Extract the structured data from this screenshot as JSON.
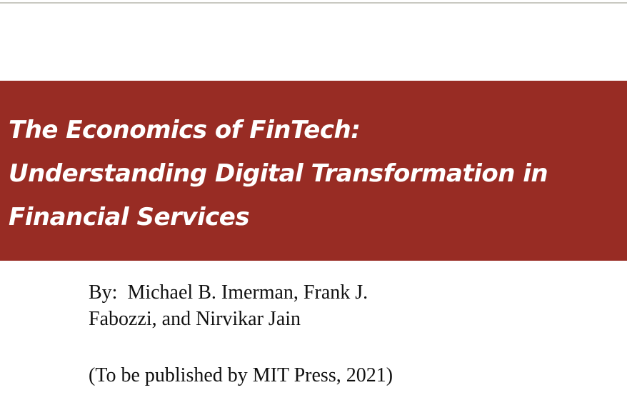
{
  "slide": {
    "title_lines": [
      "The Economics of FinTech:",
      "Understanding Digital Transformation in",
      "Financial Services"
    ],
    "authors_lines": [
      "By:  Michael B. Imerman, Frank J.",
      "Fabozzi, and Nirvikar Jain"
    ],
    "publication": "(To be published by MIT Press, 2021)",
    "band_color": "#982c24"
  }
}
